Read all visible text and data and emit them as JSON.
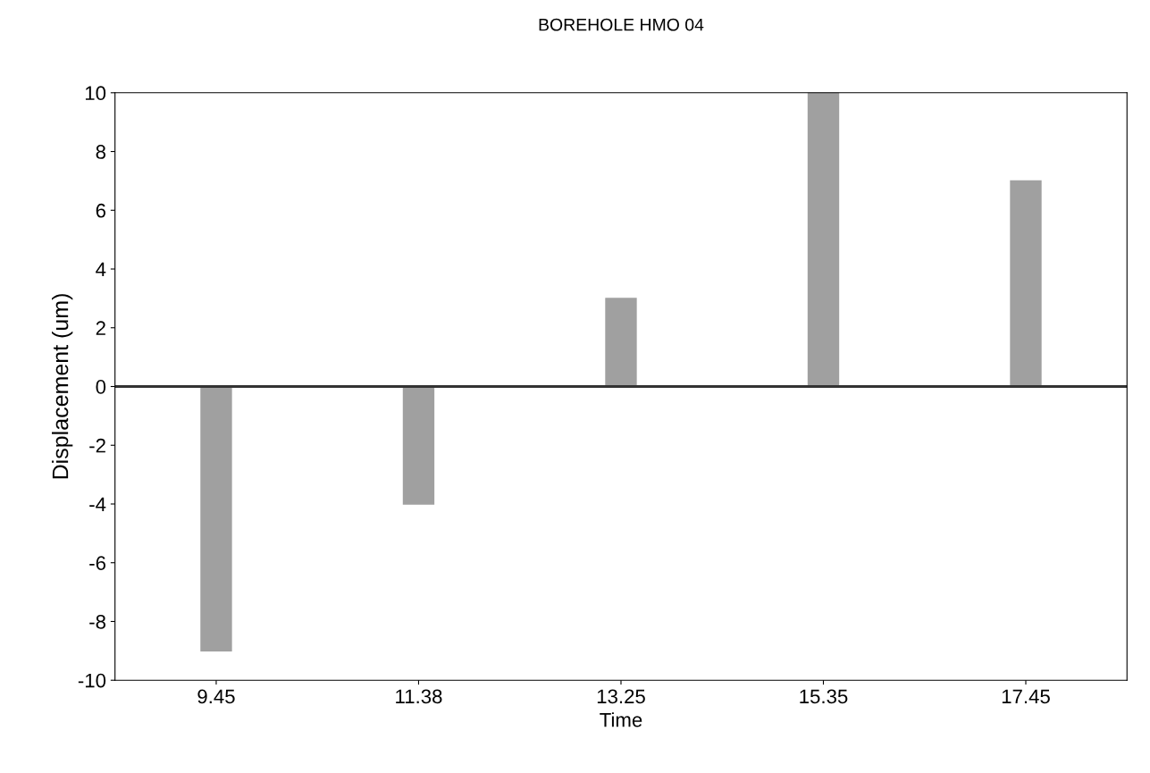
{
  "chart_data": {
    "type": "bar",
    "title": "BOREHOLE HMO 04",
    "xlabel": "Time",
    "ylabel": "Displacement (um)",
    "categories": [
      "9.45",
      "11.38",
      "13.25",
      "15.35",
      "17.45"
    ],
    "values": [
      -9,
      -4,
      3,
      10,
      7
    ],
    "color": "#a0a0a0",
    "ylim": [
      -10,
      10
    ],
    "yticks": [
      -10,
      -8,
      -6,
      -4,
      -2,
      0,
      2,
      4,
      6,
      8,
      10
    ],
    "grid": false,
    "ref_lines": [
      {
        "axis": "y",
        "value": 0,
        "color": "#333333"
      }
    ]
  }
}
